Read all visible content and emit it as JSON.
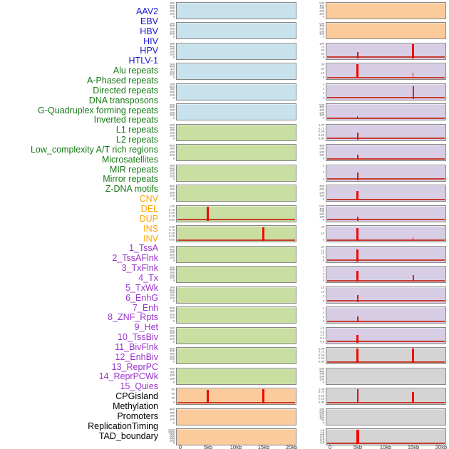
{
  "colors": {
    "label": {
      "virus": "#1717cf",
      "repeat": "#157a15",
      "sv": "#ffa500",
      "chromhmm": "#9933cc",
      "other": "#000000"
    },
    "panel": {
      "blue": "#c7e2ed",
      "green": "#c9dfa1",
      "orange": "#fbcb9b",
      "purple": "#d7cee5",
      "gray": "#d4d4d4"
    },
    "spike": "#f00a00",
    "baseline": "#c63d2f",
    "panel_border": "#878787"
  },
  "chart_data": {
    "type": "area",
    "title": "",
    "description": "Small-multiple feature tracks across a 0-20kb window; red spikes mark enrichment at the 5kb and 15kb positions; flat red baseline marks background level",
    "x": {
      "ticks": [
        "0",
        "5kb",
        "10kb",
        "15kb",
        "20kb"
      ],
      "range_kb": [
        0,
        20
      ]
    },
    "legend": "none",
    "grid": "off",
    "columns": [
      {
        "id": "left",
        "rows": [
          {
            "label": "AAV2",
            "group": "virus",
            "panel": "blue",
            "yticks": [
              "500",
              "400",
              "300",
              "200",
              "100",
              "0"
            ],
            "spikes": [],
            "baseline": false
          },
          {
            "label": "EBV",
            "group": "virus",
            "panel": "blue",
            "yticks": [
              "500",
              "400",
              "300",
              "200",
              "100",
              "0"
            ],
            "spikes": [],
            "baseline": false
          },
          {
            "label": "HBV",
            "group": "virus",
            "panel": "blue",
            "yticks": [
              "500",
              "400",
              "300",
              "200",
              "100",
              "0"
            ],
            "spikes": [],
            "baseline": false
          },
          {
            "label": "HIV",
            "group": "virus",
            "panel": "blue",
            "yticks": [
              "500",
              "400",
              "300",
              "200",
              "100",
              "0"
            ],
            "spikes": [],
            "baseline": false
          },
          {
            "label": "HPV",
            "group": "virus",
            "panel": "blue",
            "yticks": [
              "500",
              "400",
              "300",
              "200",
              "100",
              "0"
            ],
            "spikes": [],
            "baseline": false
          },
          {
            "label": "HTLV-1",
            "group": "virus",
            "panel": "blue",
            "yticks": [
              "500",
              "400",
              "300",
              "200",
              "100",
              "0"
            ],
            "spikes": [],
            "baseline": false
          },
          {
            "label": "Alu repeats",
            "group": "repeat",
            "panel": "green",
            "yticks": [
              "500",
              "400",
              "300",
              "200",
              "100",
              "0"
            ],
            "spikes": [],
            "baseline": false
          },
          {
            "label": "A-Phased repeats",
            "group": "repeat",
            "panel": "green",
            "yticks": [
              "400",
              "300",
              "200",
              "100",
              "0"
            ],
            "spikes": [],
            "baseline": false
          },
          {
            "label": "Directed repeats",
            "group": "repeat",
            "panel": "green",
            "yticks": [
              "500",
              "400",
              "300",
              "200",
              "100",
              "0"
            ],
            "spikes": [],
            "baseline": false
          },
          {
            "label": "DNA transposons",
            "group": "repeat",
            "panel": "green",
            "yticks": [
              "400",
              "300",
              "200",
              "100",
              "0"
            ],
            "spikes": [],
            "baseline": false
          },
          {
            "label": "G-Quadruplex forming repeats",
            "group": "repeat",
            "panel": "green",
            "yticks": [
              "1.00",
              "0.75",
              "0.50",
              "0.25",
              "0.00"
            ],
            "spikes": [
              [
                5,
                0.97,
                2.5
              ]
            ],
            "baseline": true
          },
          {
            "label": "Inverted repeats",
            "group": "repeat",
            "panel": "green",
            "yticks": [
              "1.00",
              "0.75",
              "0.50",
              "0.25",
              "0.00"
            ],
            "spikes": [
              [
                15,
                0.97,
                2.5
              ]
            ],
            "baseline": true
          },
          {
            "label": "L1 repeats",
            "group": "repeat",
            "panel": "green",
            "yticks": [
              "500",
              "400",
              "300",
              "200",
              "100",
              "0"
            ],
            "spikes": [],
            "baseline": false
          },
          {
            "label": "L2 repeats",
            "group": "repeat",
            "panel": "green",
            "yticks": [
              "500",
              "400",
              "300",
              "200",
              "100",
              "0"
            ],
            "spikes": [],
            "baseline": false
          },
          {
            "label": "Low_complexity A/T rich regions",
            "group": "repeat",
            "panel": "green",
            "yticks": [
              "500",
              "400",
              "300",
              "200",
              "100",
              "0"
            ],
            "spikes": [],
            "baseline": false
          },
          {
            "label": "Microsatellites",
            "group": "repeat",
            "panel": "green",
            "yticks": [
              "400",
              "300",
              "200",
              "100",
              "0"
            ],
            "spikes": [],
            "baseline": false
          },
          {
            "label": "MIR repeats",
            "group": "repeat",
            "panel": "green",
            "yticks": [
              "500",
              "400",
              "300",
              "200",
              "100",
              "0"
            ],
            "spikes": [],
            "baseline": false
          },
          {
            "label": "Mirror repeats",
            "group": "repeat",
            "panel": "green",
            "yticks": [
              "500",
              "400",
              "300",
              "200",
              "100",
              "0"
            ],
            "spikes": [],
            "baseline": false
          },
          {
            "label": "Z-DNA motifs",
            "group": "repeat",
            "panel": "green",
            "yticks": [
              "400",
              "300",
              "200",
              "100",
              "0"
            ],
            "spikes": [],
            "baseline": false
          },
          {
            "label": "CNV",
            "group": "sv",
            "panel": "orange",
            "yticks": [
              "60",
              "40",
              "20",
              "0"
            ],
            "spikes": [
              [
                5,
                0.95,
                3
              ],
              [
                15,
                1.0,
                3
              ]
            ],
            "baseline": true
          },
          {
            "label": "DEL",
            "group": "sv",
            "panel": "orange",
            "yticks": [
              "400",
              "300",
              "200",
              "100",
              "0"
            ],
            "spikes": [],
            "baseline": false
          },
          {
            "label": "DUP",
            "group": "sv",
            "panel": "orange",
            "yticks": [
              "1200",
              "1000",
              "800",
              "600",
              "400",
              "200",
              "0"
            ],
            "spikes": [],
            "baseline": false
          }
        ]
      },
      {
        "id": "right",
        "rows": [
          {
            "label": "INS",
            "group": "sv",
            "panel": "orange",
            "yticks": [
              "500",
              "400",
              "300",
              "200",
              "100",
              "0"
            ],
            "spikes": [],
            "baseline": false
          },
          {
            "label": "INV",
            "group": "sv",
            "panel": "orange",
            "yticks": [
              "500",
              "400",
              "300",
              "200",
              "100",
              "0"
            ],
            "spikes": [],
            "baseline": false
          },
          {
            "label": "1_TssA",
            "group": "chromhmm",
            "panel": "purple",
            "yticks": [
              "100",
              "75",
              "50",
              "25",
              "0"
            ],
            "spikes": [
              [
                5,
                0.42,
                2
              ],
              [
                15,
                1.0,
                2.5
              ]
            ],
            "baseline": true
          },
          {
            "label": "2_TssAFlnk",
            "group": "chromhmm",
            "panel": "purple",
            "yticks": [
              "30",
              "20",
              "10",
              "0"
            ],
            "spikes": [
              [
                5,
                1.0,
                3
              ],
              [
                15,
                0.38,
                1.5
              ]
            ],
            "baseline": true
          },
          {
            "label": "3_TxFlnk",
            "group": "chromhmm",
            "panel": "purple",
            "yticks": [
              "3",
              "2",
              "1",
              "0"
            ],
            "spikes": [
              [
                15,
                0.88,
                2
              ]
            ],
            "baseline": true
          },
          {
            "label": "4_Tx",
            "group": "chromhmm",
            "panel": "purple",
            "yticks": [
              "500",
              "400",
              "300",
              "200",
              "100",
              "0"
            ],
            "spikes": [
              [
                5,
                0.18,
                1.5
              ]
            ],
            "baseline": true
          },
          {
            "label": "5_TxWk",
            "group": "chromhmm",
            "panel": "purple",
            "yticks": [
              "1.00",
              "0.75",
              "0.50",
              "0.25",
              "0.00"
            ],
            "spikes": [
              [
                5,
                0.5,
                2
              ]
            ],
            "baseline": true
          },
          {
            "label": "6_EnhG",
            "group": "chromhmm",
            "panel": "purple",
            "yticks": [
              "400",
              "300",
              "200",
              "100",
              "0"
            ],
            "spikes": [
              [
                5,
                0.35,
                2
              ]
            ],
            "baseline": true
          },
          {
            "label": "7_Enh",
            "group": "chromhmm",
            "panel": "purple",
            "yticks": [
              "2",
              "1",
              "0"
            ],
            "spikes": [
              [
                5,
                0.55,
                2
              ]
            ],
            "baseline": true
          },
          {
            "label": "8_ZNF_Rpts",
            "group": "chromhmm",
            "panel": "purple",
            "yticks": [
              "400",
              "300",
              "200",
              "100",
              "0"
            ],
            "spikes": [
              [
                5,
                0.65,
                2.5
              ]
            ],
            "baseline": true
          },
          {
            "label": "9_Het",
            "group": "chromhmm",
            "panel": "purple",
            "yticks": [
              "500",
              "400",
              "300",
              "200",
              "100",
              "0"
            ],
            "spikes": [
              [
                5,
                0.3,
                2
              ]
            ],
            "baseline": true
          },
          {
            "label": "10_TssBiv",
            "group": "chromhmm",
            "panel": "purple",
            "yticks": [
              "20",
              "10",
              "0"
            ],
            "spikes": [
              [
                5,
                0.92,
                2.5
              ],
              [
                15,
                0.25,
                1.5
              ]
            ],
            "baseline": true
          },
          {
            "label": "11_BivFlnk",
            "group": "chromhmm",
            "panel": "purple",
            "yticks": [
              "20",
              "15",
              "10",
              "5",
              "0"
            ],
            "spikes": [
              [
                5,
                0.85,
                2.5
              ]
            ],
            "baseline": true
          },
          {
            "label": "12_EnhBiv",
            "group": "chromhmm",
            "panel": "purple",
            "yticks": [
              "4",
              "3",
              "2",
              "1",
              "0"
            ],
            "spikes": [
              [
                5,
                0.75,
                2.5
              ],
              [
                15,
                0.45,
                2
              ]
            ],
            "baseline": true
          },
          {
            "label": "13_ReprPC",
            "group": "chromhmm",
            "panel": "purple",
            "yticks": [
              "15",
              "10",
              "5",
              "0"
            ],
            "spikes": [
              [
                5,
                0.5,
                2
              ]
            ],
            "baseline": true
          },
          {
            "label": "14_ReprPCWk",
            "group": "chromhmm",
            "panel": "purple",
            "yticks": [
              "3",
              "2",
              "1",
              "0"
            ],
            "spikes": [
              [
                5,
                0.38,
                2
              ]
            ],
            "baseline": true
          },
          {
            "label": "15_Quies",
            "group": "chromhmm",
            "panel": "purple",
            "yticks": [
              "2.0",
              "1.5",
              "1.0",
              "0.5",
              "0.0"
            ],
            "spikes": [
              [
                5,
                0.55,
                2.5
              ]
            ],
            "baseline": true
          },
          {
            "label": "CPGisland",
            "group": "other",
            "panel": "gray",
            "yticks": [
              "1.00",
              "0.75",
              "0.50",
              "0.25",
              "0.00"
            ],
            "spikes": [
              [
                5,
                1.0,
                3
              ],
              [
                15,
                1.0,
                3
              ]
            ],
            "baseline": true
          },
          {
            "label": "Methylation",
            "group": "other",
            "panel": "gray",
            "yticks": [
              "500",
              "400",
              "300",
              "200",
              "100",
              "0"
            ],
            "spikes": [],
            "baseline": false
          },
          {
            "label": "Promoters",
            "group": "other",
            "panel": "gray",
            "yticks": [
              "1.00",
              "0.75",
              "0.50",
              "0.25",
              "0.00"
            ],
            "spikes": [
              [
                5,
                1.0,
                2
              ],
              [
                15,
                0.8,
                3
              ]
            ],
            "baseline": true
          },
          {
            "label": "ReplicationTiming",
            "group": "other",
            "panel": "gray",
            "yticks": [
              "300",
              "250",
              "200",
              "150",
              "100",
              "50",
              "0"
            ],
            "spikes": [],
            "baseline": false
          },
          {
            "label": "TAD_boundary",
            "group": "other",
            "panel": "gray",
            "yticks": [
              "1.4",
              "1.2",
              "1.0",
              "0.8",
              "0.6",
              "0.4",
              "0.2",
              "0.0"
            ],
            "spikes": [
              [
                5,
                1.0,
                4
              ]
            ],
            "baseline": true
          }
        ]
      }
    ]
  }
}
